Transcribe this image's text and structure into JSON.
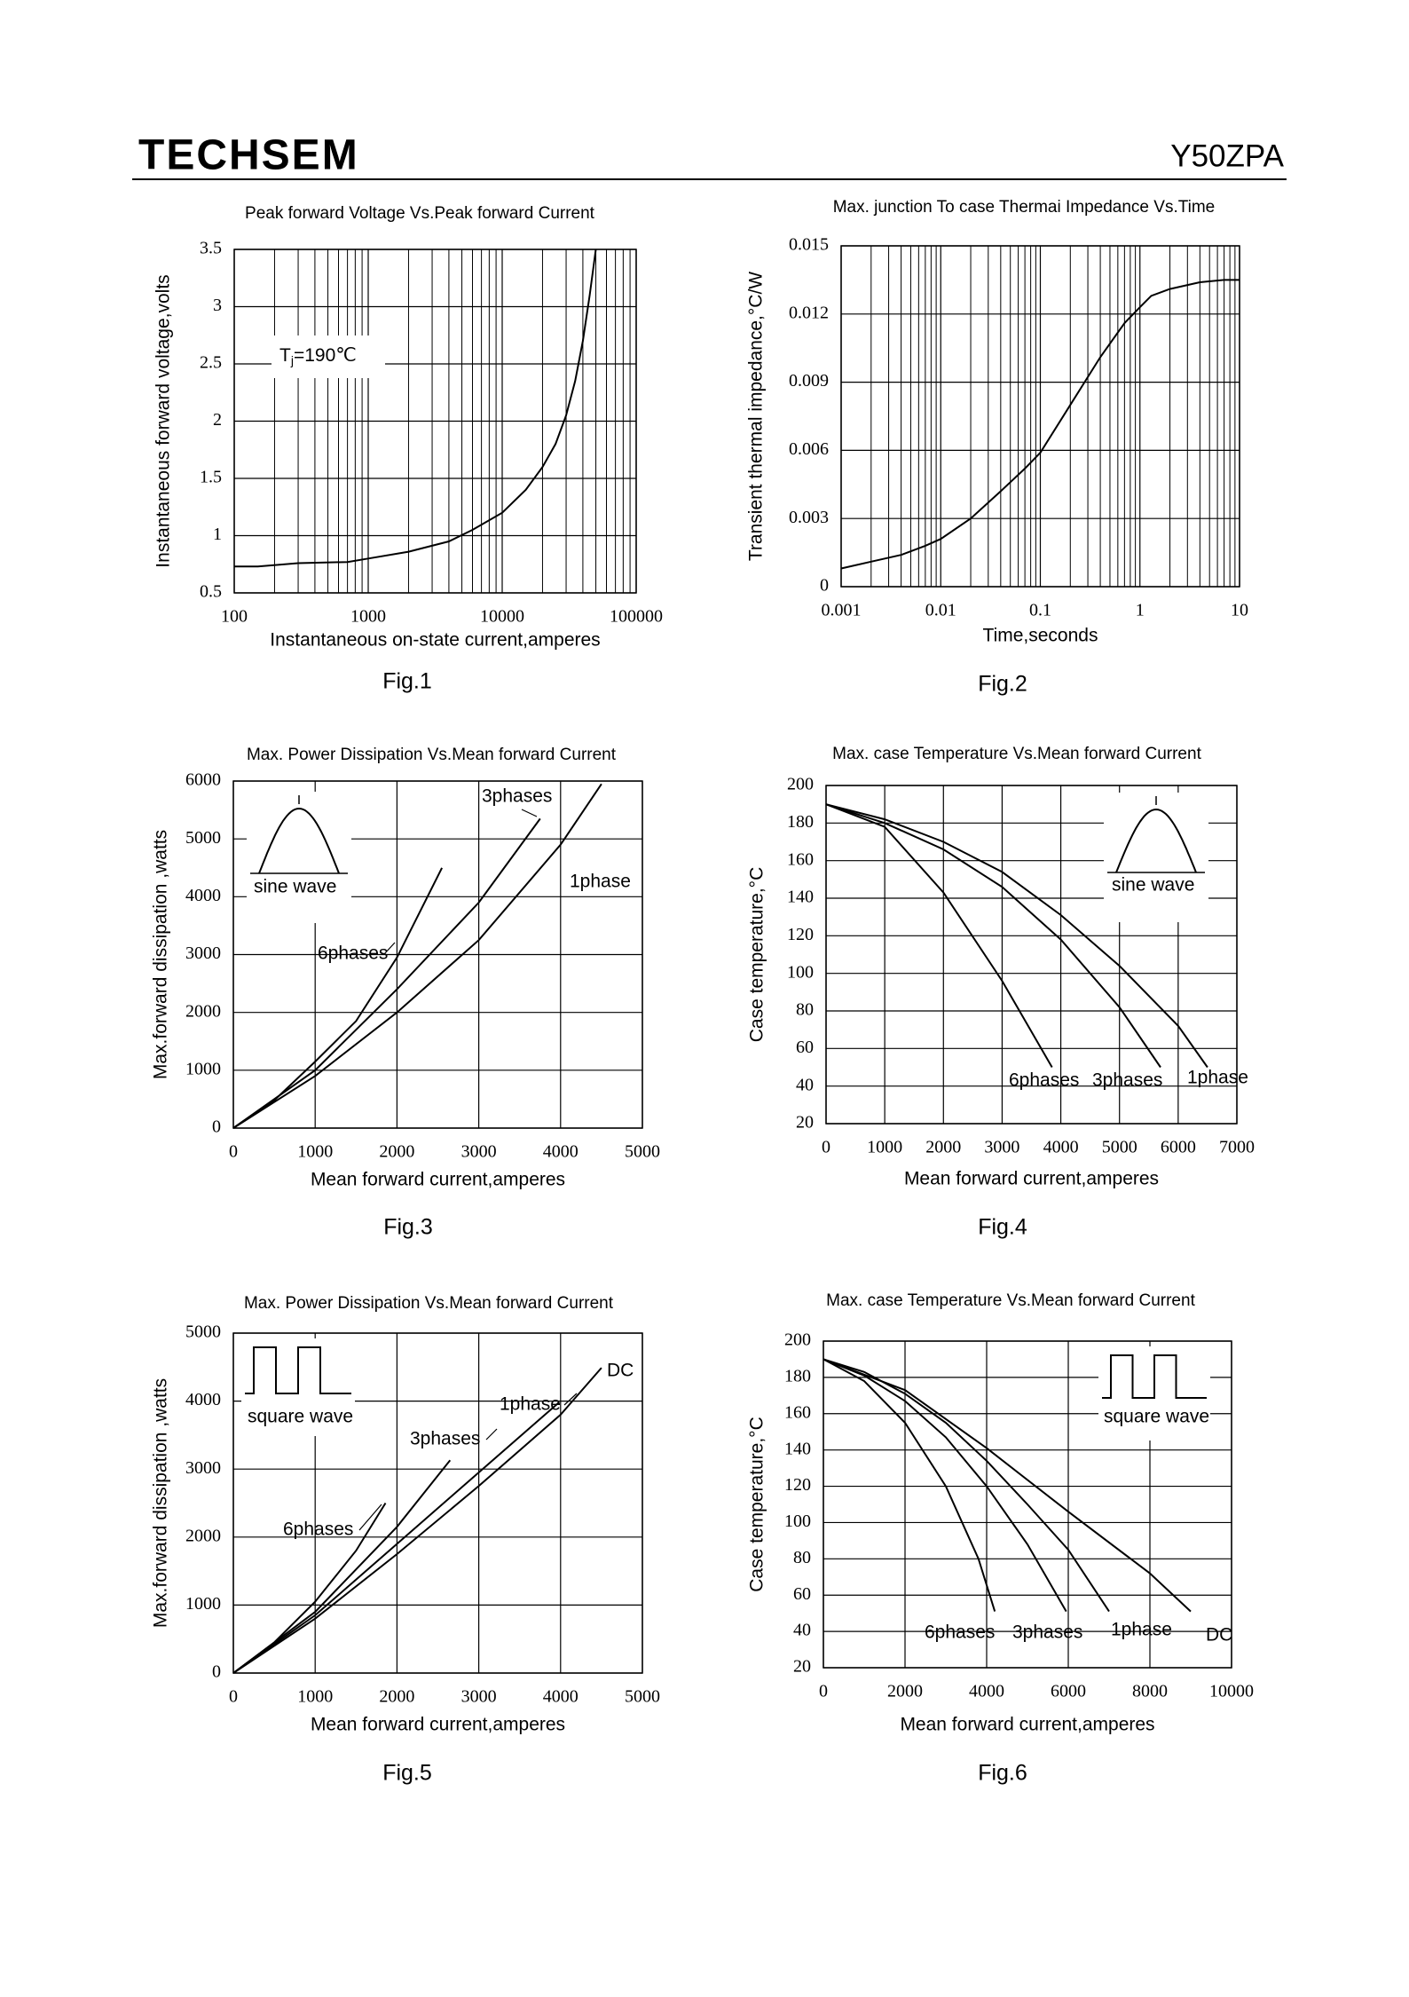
{
  "header": {
    "brand": "TECHSEM",
    "part_number": "Y50ZPA"
  },
  "chart_data": [
    {
      "type": "line",
      "title": "Peak forward Voltage Vs.Peak forward Current",
      "x_label": "Instantaneous on-state current,amperes",
      "y_label": "Instantaneous forward voltage,volts",
      "caption": "Fig.1",
      "xscale": "log",
      "grid": true,
      "xlim": [
        100,
        100000
      ],
      "xticks": [
        100,
        1000,
        10000,
        100000
      ],
      "ylim": [
        0.5,
        3.5
      ],
      "yticks": [
        0.5,
        1,
        1.5,
        2,
        2.5,
        3,
        3.5
      ],
      "annotations": [
        {
          "symbol": "T",
          "subscript": "j",
          "text": "=190℃"
        }
      ],
      "series": [
        {
          "color": "#000000",
          "x": [
            100,
            150,
            300,
            700,
            1000,
            2000,
            4000,
            6000,
            10000,
            15000,
            20000,
            25000,
            30000,
            35000,
            40000,
            45000,
            50000
          ],
          "values": [
            0.73,
            0.73,
            0.76,
            0.77,
            0.8,
            0.86,
            0.95,
            1.05,
            1.2,
            1.4,
            1.6,
            1.8,
            2.05,
            2.35,
            2.7,
            3.1,
            3.5
          ]
        }
      ]
    },
    {
      "type": "line",
      "title": "Max. junction To case Thermai Impedance Vs.Time",
      "x_label": "Time,seconds",
      "y_label": "Transient thermal impedance,°C/W",
      "caption": "Fig.2",
      "xscale": "log",
      "grid": true,
      "xlim": [
        0.001,
        10
      ],
      "xticks": [
        0.001,
        0.01,
        0.1,
        1,
        10
      ],
      "ylim": [
        0,
        0.015
      ],
      "yticks": [
        0,
        0.003,
        0.006,
        0.009,
        0.012,
        0.015
      ],
      "annotations": [],
      "series": [
        {
          "color": "#000000",
          "x": [
            0.001,
            0.002,
            0.004,
            0.007,
            0.01,
            0.02,
            0.04,
            0.07,
            0.1,
            0.2,
            0.4,
            0.7,
            1,
            1.3,
            2,
            4,
            7,
            10
          ],
          "values": [
            0.0008,
            0.0011,
            0.0014,
            0.0018,
            0.0021,
            0.003,
            0.0042,
            0.0052,
            0.0059,
            0.008,
            0.0101,
            0.0116,
            0.0123,
            0.0128,
            0.0131,
            0.0134,
            0.0135,
            0.0135
          ]
        }
      ]
    },
    {
      "type": "line",
      "title": "Max. Power Dissipation Vs.Mean forward Current",
      "x_label": "Mean forward current,amperes",
      "y_label": "Max.forward dissipation ,watts",
      "caption": "Fig.3",
      "xscale": "linear",
      "grid": true,
      "xlim": [
        0,
        5000
      ],
      "xticks": [
        0,
        1000,
        2000,
        3000,
        4000,
        5000
      ],
      "ylim": [
        0,
        6000
      ],
      "yticks": [
        0,
        1000,
        2000,
        3000,
        4000,
        5000,
        6000
      ],
      "annotations": [
        {
          "text": "sine wave"
        }
      ],
      "series": [
        {
          "name": "6phases",
          "color": "#000000",
          "x": [
            0,
            500,
            1000,
            1500,
            2000,
            2550
          ],
          "values": [
            0,
            480,
            1150,
            1850,
            2950,
            4500
          ]
        },
        {
          "name": "3phases",
          "color": "#000000",
          "x": [
            0,
            1000,
            2000,
            3000,
            3750
          ],
          "values": [
            0,
            1000,
            2400,
            3900,
            5350
          ]
        },
        {
          "name": "1phase",
          "color": "#000000",
          "x": [
            0,
            1000,
            2000,
            3000,
            4000,
            4500
          ],
          "values": [
            0,
            900,
            2000,
            3250,
            4900,
            5950
          ]
        }
      ]
    },
    {
      "type": "line",
      "title": "Max. case  Temperature Vs.Mean forward Current",
      "x_label": "Mean forward current,amperes",
      "y_label": "Case  temperature,°C",
      "caption": "Fig.4",
      "xscale": "linear",
      "grid": true,
      "xlim": [
        0,
        7000
      ],
      "xticks": [
        0,
        1000,
        2000,
        3000,
        4000,
        5000,
        6000,
        7000
      ],
      "ylim": [
        20,
        200
      ],
      "yticks": [
        20,
        40,
        60,
        80,
        100,
        120,
        140,
        160,
        180,
        200
      ],
      "annotations": [
        {
          "text": "sine wave"
        }
      ],
      "series": [
        {
          "name": "6phases",
          "color": "#000000",
          "x": [
            0,
            1000,
            2000,
            3000,
            3850
          ],
          "values": [
            190,
            178,
            143,
            96,
            50
          ]
        },
        {
          "name": "3phases",
          "color": "#000000",
          "x": [
            0,
            1000,
            2000,
            3000,
            4000,
            5000,
            5700
          ],
          "values": [
            190,
            180,
            166,
            146,
            118,
            82,
            50
          ]
        },
        {
          "name": "1phase",
          "color": "#000000",
          "x": [
            0,
            1000,
            2000,
            3000,
            4000,
            5000,
            6000,
            6500
          ],
          "values": [
            190,
            182,
            170,
            154,
            131,
            104,
            72,
            50
          ]
        }
      ]
    },
    {
      "type": "line",
      "title": "Max. Power Dissipation Vs.Mean forward Current",
      "x_label": "Mean forward current,amperes",
      "y_label": "Max.forward dissipation ,watts",
      "caption": "Fig.5",
      "xscale": "linear",
      "grid": true,
      "xlim": [
        0,
        5000
      ],
      "xticks": [
        0,
        1000,
        2000,
        3000,
        4000,
        5000
      ],
      "ylim": [
        0,
        5000
      ],
      "yticks": [
        0,
        1000,
        2000,
        3000,
        4000,
        5000
      ],
      "annotations": [
        {
          "text": "square wave"
        }
      ],
      "series": [
        {
          "name": "6phases",
          "color": "#000000",
          "x": [
            0,
            500,
            1000,
            1500,
            1860
          ],
          "values": [
            0,
            450,
            1050,
            1800,
            2500
          ]
        },
        {
          "name": "3phases",
          "color": "#000000",
          "x": [
            0,
            1000,
            2000,
            2650
          ],
          "values": [
            0,
            900,
            2150,
            3130
          ]
        },
        {
          "name": "1phase",
          "color": "#000000",
          "x": [
            0,
            1000,
            2000,
            3000,
            3980
          ],
          "values": [
            0,
            850,
            1900,
            2950,
            3980
          ]
        },
        {
          "name": "DC",
          "color": "#000000",
          "x": [
            0,
            1000,
            2000,
            3000,
            4000,
            4500
          ],
          "values": [
            0,
            800,
            1750,
            2750,
            3800,
            4490
          ]
        }
      ]
    },
    {
      "type": "line",
      "title": "Max. case Temperature Vs.Mean forward Current",
      "x_label": "Mean forward current,amperes",
      "y_label": "Case temperature,°C",
      "caption": "Fig.6",
      "xscale": "linear",
      "grid": true,
      "xlim": [
        0,
        10000
      ],
      "xticks": [
        0,
        2000,
        4000,
        6000,
        8000,
        10000
      ],
      "ylim": [
        20,
        200
      ],
      "yticks": [
        20,
        40,
        60,
        80,
        100,
        120,
        140,
        160,
        180,
        200
      ],
      "annotations": [
        {
          "text": "square wave"
        }
      ],
      "series": [
        {
          "name": "6phases",
          "color": "#000000",
          "x": [
            0,
            1000,
            2000,
            3000,
            3800,
            4200
          ],
          "values": [
            190,
            178,
            155,
            120,
            80,
            51
          ]
        },
        {
          "name": "3phases",
          "color": "#000000",
          "x": [
            0,
            1000,
            2000,
            3000,
            4000,
            5000,
            5950
          ],
          "values": [
            190,
            181,
            167,
            147,
            120,
            88,
            51
          ]
        },
        {
          "name": "1phase",
          "color": "#000000",
          "x": [
            0,
            1000,
            2000,
            3000,
            4000,
            5000,
            6000,
            7000
          ],
          "values": [
            190,
            183,
            171,
            155,
            134,
            110,
            85,
            51
          ]
        },
        {
          "name": "DC",
          "color": "#000000",
          "x": [
            0,
            2000,
            4000,
            6000,
            8000,
            9000
          ],
          "values": [
            190,
            173,
            141,
            106,
            72,
            51
          ]
        }
      ]
    }
  ]
}
